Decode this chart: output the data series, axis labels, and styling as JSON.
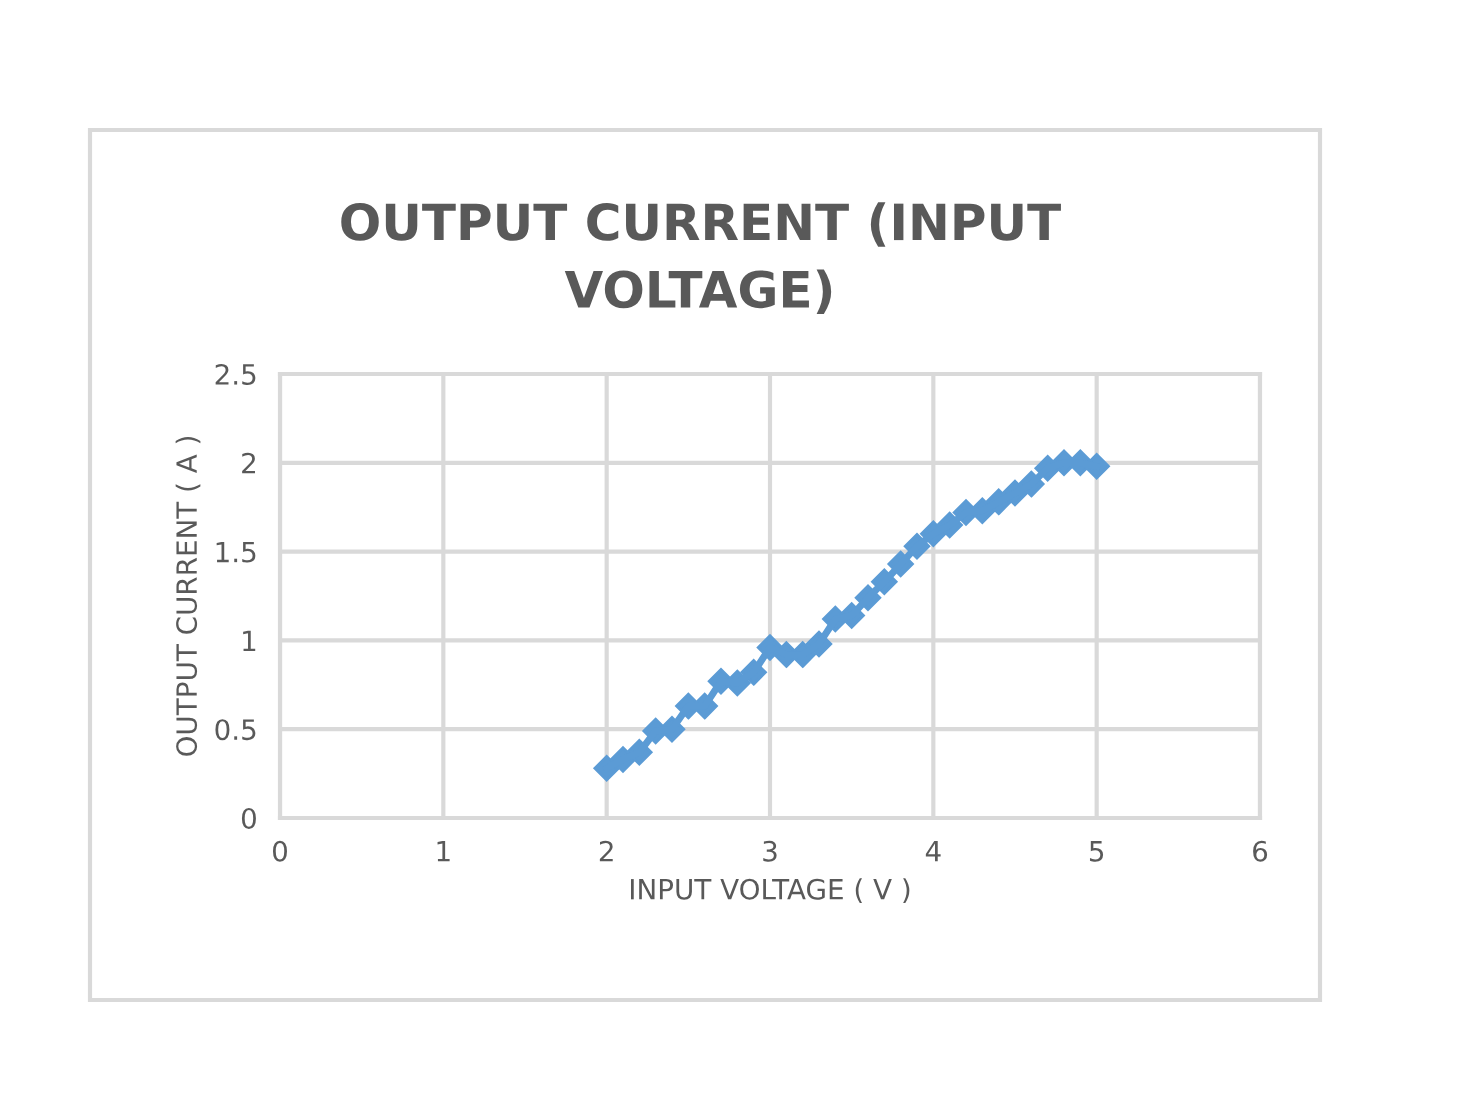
{
  "chart_data": {
    "type": "line",
    "title": "OUTPUT CURRENT (INPUT\nVOLTAGE)",
    "xlabel": "INPUT VOLTAGE ( V )",
    "ylabel": "OUTPUT CURRENT ( A )",
    "x": [
      2.0,
      2.1,
      2.2,
      2.3,
      2.4,
      2.5,
      2.6,
      2.7,
      2.8,
      2.9,
      3.0,
      3.1,
      3.2,
      3.3,
      3.4,
      3.5,
      3.6,
      3.7,
      3.8,
      3.9,
      4.0,
      4.1,
      4.2,
      4.3,
      4.4,
      4.5,
      4.6,
      4.7,
      4.8,
      4.9,
      5.0
    ],
    "series": [
      {
        "color": "#5b9bd5",
        "values": [
          0.28,
          0.33,
          0.37,
          0.49,
          0.5,
          0.63,
          0.63,
          0.77,
          0.76,
          0.82,
          0.96,
          0.92,
          0.92,
          0.98,
          1.12,
          1.14,
          1.24,
          1.33,
          1.43,
          1.53,
          1.6,
          1.65,
          1.72,
          1.73,
          1.78,
          1.83,
          1.88,
          1.97,
          2.0,
          2.0,
          1.98
        ]
      }
    ],
    "xlim": [
      0,
      6
    ],
    "xticks": [
      0,
      1,
      2,
      3,
      4,
      5,
      6
    ],
    "ylim": [
      0,
      2.5
    ],
    "yticks": [
      0,
      0.5,
      1,
      1.5,
      2,
      2.5
    ],
    "grid": true,
    "marker": "diamond",
    "line_style": "solid"
  }
}
